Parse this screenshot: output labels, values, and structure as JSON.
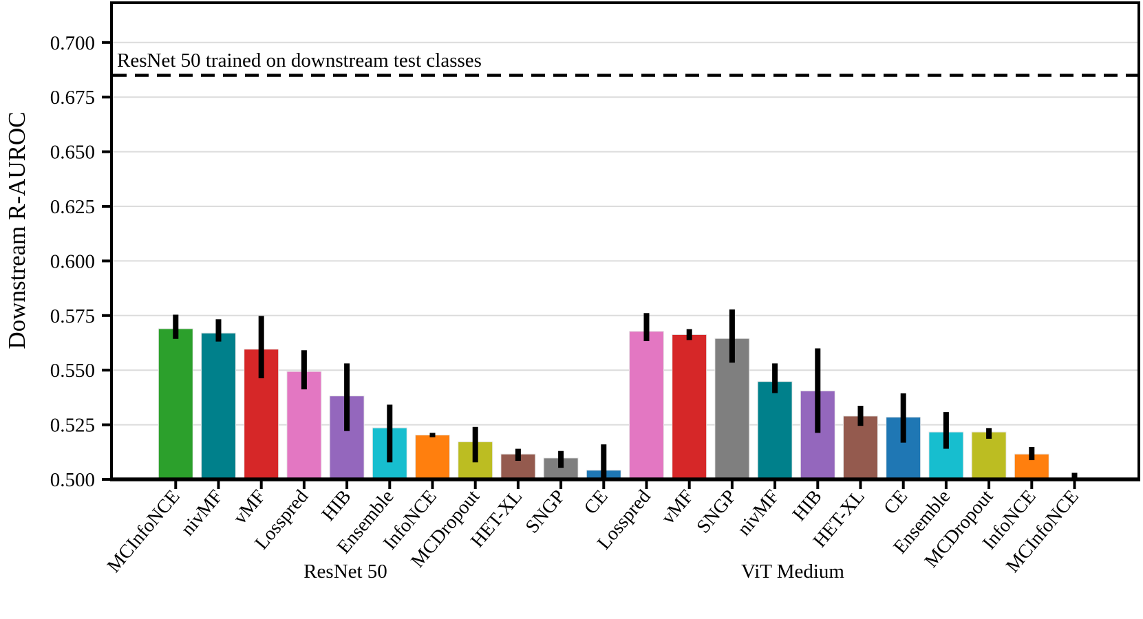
{
  "figure": {
    "background": "#ffffff",
    "grid_color": "#dcdcdc",
    "spine_color": "#000000",
    "errorbar_color": "#000000"
  },
  "chart_data": {
    "type": "bar",
    "title": "",
    "xlabel": "",
    "ylabel": "Downstream R-AUROC",
    "ylim": [
      0.5,
      0.7182
    ],
    "yticks": [
      0.5,
      0.525,
      0.55,
      0.575,
      0.6,
      0.625,
      0.65,
      0.675,
      0.7
    ],
    "ytick_labels": [
      "0.500",
      "0.525",
      "0.550",
      "0.575",
      "0.600",
      "0.625",
      "0.650",
      "0.675",
      "0.700"
    ],
    "grid": "horizontal",
    "legend": "none",
    "baseline": {
      "label": "ResNet 50 trained on downstream test classes",
      "value": 0.685,
      "style": "dashed",
      "color": "#000000"
    },
    "groups": [
      {
        "label": "ResNet 50",
        "bars": [
          {
            "method": "MCInfoNCE",
            "value": 0.569,
            "err_lo": 0.5643,
            "err_hi": 0.5754,
            "color": "#2ca02c"
          },
          {
            "method": "nivMF",
            "value": 0.567,
            "err_lo": 0.5631,
            "err_hi": 0.5733,
            "color": "#00808b"
          },
          {
            "method": "vMF",
            "value": 0.5596,
            "err_lo": 0.5463,
            "err_hi": 0.5748,
            "color": "#d62728"
          },
          {
            "method": "Losspred",
            "value": 0.5494,
            "err_lo": 0.5412,
            "err_hi": 0.5591,
            "color": "#e377c2"
          },
          {
            "method": "HIB",
            "value": 0.5382,
            "err_lo": 0.5221,
            "err_hi": 0.5531,
            "color": "#9467bd"
          },
          {
            "method": "Ensemble",
            "value": 0.5236,
            "err_lo": 0.5078,
            "err_hi": 0.5342,
            "color": "#17becf"
          },
          {
            "method": "InfoNCE",
            "value": 0.5203,
            "err_lo": 0.5193,
            "err_hi": 0.5213,
            "color": "#ff7f0e"
          },
          {
            "method": "MCDropout",
            "value": 0.5172,
            "err_lo": 0.5078,
            "err_hi": 0.524,
            "color": "#bcbd22"
          },
          {
            "method": "HET-XL",
            "value": 0.5116,
            "err_lo": 0.5085,
            "err_hi": 0.514,
            "color": "#945a4e"
          },
          {
            "method": "SNGP",
            "value": 0.5098,
            "err_lo": 0.5053,
            "err_hi": 0.513,
            "color": "#7f7f7f"
          },
          {
            "method": "CE",
            "value": 0.5042,
            "err_lo": 0.5,
            "err_hi": 0.516,
            "color": "#1f77b4"
          }
        ]
      },
      {
        "label": "ViT Medium",
        "bars": [
          {
            "method": "Losspred",
            "value": 0.5678,
            "err_lo": 0.5633,
            "err_hi": 0.5761,
            "color": "#e377c2"
          },
          {
            "method": "vMF",
            "value": 0.5663,
            "err_lo": 0.5638,
            "err_hi": 0.5688,
            "color": "#d62728"
          },
          {
            "method": "SNGP",
            "value": 0.5645,
            "err_lo": 0.5534,
            "err_hi": 0.5778,
            "color": "#7f7f7f"
          },
          {
            "method": "nivMF",
            "value": 0.5448,
            "err_lo": 0.5395,
            "err_hi": 0.5531,
            "color": "#00808b"
          },
          {
            "method": "HIB",
            "value": 0.5405,
            "err_lo": 0.5213,
            "err_hi": 0.56,
            "color": "#9467bd"
          },
          {
            "method": "HET-XL",
            "value": 0.529,
            "err_lo": 0.5245,
            "err_hi": 0.5337,
            "color": "#945a4e"
          },
          {
            "method": "CE",
            "value": 0.5285,
            "err_lo": 0.5168,
            "err_hi": 0.5394,
            "color": "#1f77b4"
          },
          {
            "method": "Ensemble",
            "value": 0.5217,
            "err_lo": 0.514,
            "err_hi": 0.5308,
            "color": "#17becf"
          },
          {
            "method": "MCDropout",
            "value": 0.5217,
            "err_lo": 0.5186,
            "err_hi": 0.5235,
            "color": "#bcbd22"
          },
          {
            "method": "InfoNCE",
            "value": 0.5116,
            "err_lo": 0.5088,
            "err_hi": 0.5148,
            "color": "#ff7f0e"
          },
          {
            "method": "MCInfoNCE",
            "value": 0.5002,
            "err_lo": 0.5,
            "err_hi": 0.503,
            "color": "#2ca02c"
          }
        ]
      }
    ]
  }
}
